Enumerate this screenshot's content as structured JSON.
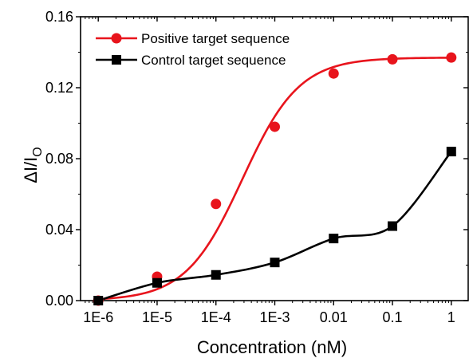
{
  "chart_data": {
    "type": "line",
    "title": "",
    "xlabel": "Concentration (nM)",
    "ylabel_main": "ΔI/I",
    "ylabel_sub": "O",
    "x_scale": "log",
    "xlim": [
      5e-07,
      2
    ],
    "ylim": [
      0,
      0.16
    ],
    "x_ticks": [
      {
        "value": 1e-06,
        "label": "1E-6"
      },
      {
        "value": 1e-05,
        "label": "1E-5"
      },
      {
        "value": 0.0001,
        "label": "1E-4"
      },
      {
        "value": 0.001,
        "label": "1E-3"
      },
      {
        "value": 0.01,
        "label": "0.01"
      },
      {
        "value": 0.1,
        "label": "0.1"
      },
      {
        "value": 1,
        "label": "1"
      }
    ],
    "y_ticks": [
      {
        "value": 0,
        "label": "0.00"
      },
      {
        "value": 0.04,
        "label": "0.04"
      },
      {
        "value": 0.08,
        "label": "0.08"
      },
      {
        "value": 0.12,
        "label": "0.12"
      },
      {
        "value": 0.16,
        "label": "0.16"
      }
    ],
    "grid": false,
    "legend_position": "top-left",
    "series": [
      {
        "name": "Positive target sequence",
        "color": "#e8141c",
        "marker": "circle",
        "x": [
          1e-06,
          1e-05,
          0.0001,
          0.001,
          0.01,
          0.1,
          1
        ],
        "y": [
          0.0,
          0.0135,
          0.0545,
          0.098,
          0.128,
          0.136,
          0.137
        ],
        "fit": {
          "model": "logistic",
          "bottom": 0.0,
          "top": 0.137,
          "log_x50": -3.55,
          "slope": 0.9
        }
      },
      {
        "name": "Control target sequence",
        "color": "#000000",
        "marker": "square",
        "x": [
          1e-06,
          1e-05,
          0.0001,
          0.001,
          0.01,
          0.1,
          1
        ],
        "y": [
          0.0,
          0.01,
          0.0145,
          0.0215,
          0.035,
          0.042,
          0.084
        ],
        "fit": {
          "model": "smooth"
        }
      }
    ]
  }
}
